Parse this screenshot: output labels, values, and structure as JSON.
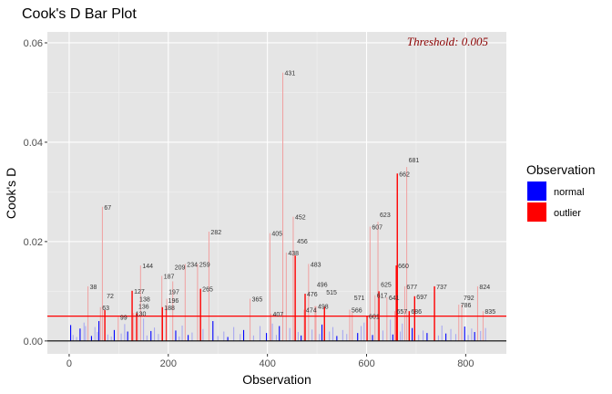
{
  "chart_data": {
    "type": "bar",
    "title": "Cook's D Bar Plot",
    "xlabel": "Observation",
    "ylabel": "Cook's D",
    "xlim": [
      -44,
      882
    ],
    "ylim": [
      -0.0026,
      0.0622
    ],
    "x_ticks": [
      0,
      200,
      400,
      600,
      800
    ],
    "x_tick_labels": [
      "0",
      "200",
      "400",
      "600",
      "800"
    ],
    "y_ticks": [
      0,
      0.02,
      0.04,
      0.06
    ],
    "y_tick_labels": [
      "0.00",
      "0.02",
      "0.04",
      "0.06"
    ],
    "grid": true,
    "threshold": 0.005,
    "threshold_label": "Threshold: 0.005",
    "colors": {
      "normal": "#0000FF",
      "outlier": "#FF0000",
      "threshold": "#8B0000",
      "panel": "#E5E5E5"
    },
    "legend": {
      "title": "Observation",
      "placement": "right",
      "entries": [
        {
          "name": "normal",
          "color": "#0000FF"
        },
        {
          "name": "outlier",
          "color": "#FF0000"
        }
      ]
    },
    "outliers": [
      [
        38,
        0.011,
        0
      ],
      [
        63,
        0.0068,
        0
      ],
      [
        67,
        0.027,
        0
      ],
      [
        72,
        0.0062,
        1
      ],
      [
        99,
        0.0048,
        0
      ],
      [
        127,
        0.0101,
        1
      ],
      [
        130,
        0.0056,
        0
      ],
      [
        136,
        0.0056,
        1
      ],
      [
        138,
        0.0056,
        0
      ],
      [
        144,
        0.0152,
        0
      ],
      [
        187,
        0.0131,
        0
      ],
      [
        188,
        0.0068,
        1
      ],
      [
        196,
        0.0068,
        1
      ],
      [
        197,
        0.0085,
        0
      ],
      [
        209,
        0.012,
        0
      ],
      [
        234,
        0.0155,
        0
      ],
      [
        259,
        0.0155,
        0
      ],
      [
        265,
        0.0105,
        1
      ],
      [
        282,
        0.022,
        0
      ],
      [
        365,
        0.0085,
        0
      ],
      [
        405,
        0.0217,
        0
      ],
      [
        407,
        0.0055,
        0
      ],
      [
        431,
        0.054,
        0
      ],
      [
        438,
        0.0178,
        0
      ],
      [
        452,
        0.025,
        0
      ],
      [
        456,
        0.0172,
        1
      ],
      [
        474,
        0.0063,
        0
      ],
      [
        476,
        0.0095,
        1
      ],
      [
        483,
        0.0155,
        0
      ],
      [
        496,
        0.007,
        0
      ],
      [
        498,
        0.007,
        0
      ],
      [
        515,
        0.0069,
        1
      ],
      [
        566,
        0.0063,
        0
      ],
      [
        571,
        0.0058,
        0
      ],
      [
        601,
        0.005,
        1
      ],
      [
        607,
        0.023,
        0
      ],
      [
        617,
        0.0092,
        0
      ],
      [
        623,
        0.024,
        0
      ],
      [
        625,
        0.01,
        1
      ],
      [
        641,
        0.0088,
        0
      ],
      [
        657,
        0.006,
        0
      ],
      [
        660,
        0.0152,
        1
      ],
      [
        662,
        0.0337,
        1
      ],
      [
        677,
        0.011,
        0
      ],
      [
        681,
        0.035,
        0
      ],
      [
        686,
        0.006,
        1
      ],
      [
        697,
        0.009,
        1
      ],
      [
        737,
        0.011,
        1
      ],
      [
        786,
        0.0073,
        0
      ],
      [
        792,
        0.0073,
        0
      ],
      [
        824,
        0.011,
        0
      ],
      [
        835,
        0.006,
        0
      ]
    ],
    "normal": [
      [
        3,
        0.0032
      ],
      [
        8,
        0.0012
      ],
      [
        15,
        0.0008
      ],
      [
        22,
        0.0025
      ],
      [
        30,
        0.0037
      ],
      [
        33,
        0.003
      ],
      [
        45,
        0.001
      ],
      [
        52,
        0.0028
      ],
      [
        57,
        0.0018
      ],
      [
        60,
        0.004
      ],
      [
        78,
        0.0013
      ],
      [
        85,
        0.0009
      ],
      [
        91,
        0.0022
      ],
      [
        105,
        0.0015
      ],
      [
        112,
        0.0034
      ],
      [
        118,
        0.0019
      ],
      [
        150,
        0.0045
      ],
      [
        157,
        0.0011
      ],
      [
        165,
        0.002
      ],
      [
        172,
        0.0027
      ],
      [
        180,
        0.0014
      ],
      [
        215,
        0.0021
      ],
      [
        222,
        0.0009
      ],
      [
        228,
        0.0031
      ],
      [
        240,
        0.0012
      ],
      [
        248,
        0.0017
      ],
      [
        270,
        0.0024
      ],
      [
        290,
        0.004
      ],
      [
        300,
        0.001
      ],
      [
        312,
        0.0019
      ],
      [
        320,
        0.0008
      ],
      [
        332,
        0.0028
      ],
      [
        345,
        0.0014
      ],
      [
        352,
        0.0022
      ],
      [
        372,
        0.0011
      ],
      [
        385,
        0.003
      ],
      [
        398,
        0.0016
      ],
      [
        410,
        0.0035
      ],
      [
        418,
        0.0012
      ],
      [
        424,
        0.003
      ],
      [
        445,
        0.0026
      ],
      [
        462,
        0.0018
      ],
      [
        468,
        0.0011
      ],
      [
        490,
        0.0023
      ],
      [
        505,
        0.0014
      ],
      [
        510,
        0.0033
      ],
      [
        525,
        0.0019
      ],
      [
        532,
        0.0028
      ],
      [
        540,
        0.001
      ],
      [
        552,
        0.0022
      ],
      [
        560,
        0.0014
      ],
      [
        582,
        0.0016
      ],
      [
        589,
        0.003
      ],
      [
        595,
        0.0037
      ],
      [
        612,
        0.0012
      ],
      [
        633,
        0.0021
      ],
      [
        648,
        0.0043
      ],
      [
        653,
        0.0013
      ],
      [
        668,
        0.0019
      ],
      [
        672,
        0.0035
      ],
      [
        692,
        0.0026
      ],
      [
        705,
        0.0012
      ],
      [
        714,
        0.0021
      ],
      [
        722,
        0.0016
      ],
      [
        745,
        0.0011
      ],
      [
        752,
        0.0031
      ],
      [
        760,
        0.0015
      ],
      [
        770,
        0.0024
      ],
      [
        780,
        0.0014
      ],
      [
        798,
        0.0029
      ],
      [
        805,
        0.0012
      ],
      [
        812,
        0.0025
      ],
      [
        818,
        0.0018
      ],
      [
        830,
        0.002
      ],
      [
        840,
        0.0026
      ]
    ]
  }
}
